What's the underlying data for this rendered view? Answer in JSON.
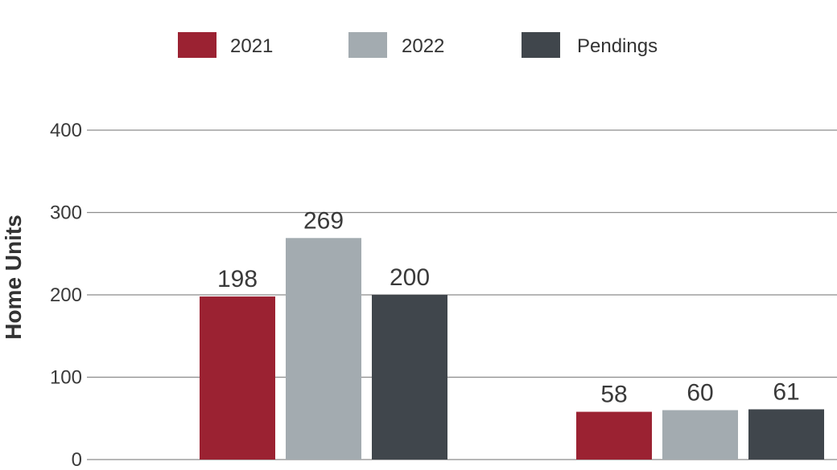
{
  "chart_data": {
    "type": "bar",
    "categories": [
      "",
      ""
    ],
    "series": [
      {
        "name": "2021",
        "color": "#9b2232",
        "values": [
          198,
          58
        ]
      },
      {
        "name": "2022",
        "color": "#a3abb0",
        "values": [
          269,
          60
        ]
      },
      {
        "name": "Pendings",
        "color": "#40464c",
        "values": [
          200,
          61
        ]
      }
    ],
    "ylabel": "Home Units",
    "xlabel": "",
    "ylim": [
      0,
      400
    ],
    "yticks": [
      0,
      100,
      200,
      300,
      400
    ],
    "grid": true,
    "legend_position": "top-center",
    "gridline_color": "#8c8c8c"
  }
}
